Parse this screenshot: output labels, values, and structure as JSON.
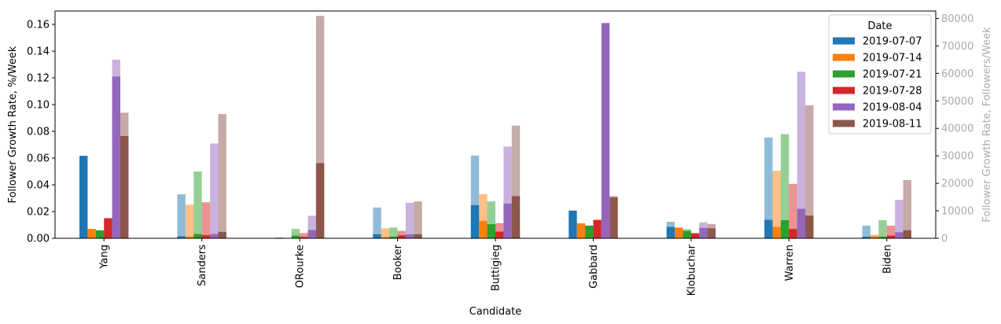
{
  "chart_data": {
    "type": "bar",
    "xlabel": "Candidate",
    "ylabel_left": "Follower Growth Rate, %/Week",
    "ylabel_right": "Follower Growth Rate, Followers/Week",
    "ylim_left": [
      0,
      0.17
    ],
    "ylim_right": [
      0,
      82700
    ],
    "yticks_left": [
      "0.00",
      "0.02",
      "0.04",
      "0.06",
      "0.08",
      "0.10",
      "0.12",
      "0.14",
      "0.16"
    ],
    "yticks_left_values": [
      0,
      0.02,
      0.04,
      0.06,
      0.08,
      0.1,
      0.12,
      0.14,
      0.16
    ],
    "yticks_right": [
      "0",
      "10000",
      "20000",
      "30000",
      "40000",
      "50000",
      "60000",
      "70000",
      "80000"
    ],
    "yticks_right_values": [
      0,
      10000,
      20000,
      30000,
      40000,
      50000,
      60000,
      70000,
      80000
    ],
    "categories": [
      "Yang",
      "Sanders",
      "ORourke",
      "Booker",
      "Buttigieg",
      "Gabbard",
      "Klobuchar",
      "Warren",
      "Biden"
    ],
    "legend": {
      "title": "Date",
      "position": "top-right"
    },
    "grid": false,
    "series": [
      {
        "name": "2019-07-07",
        "color": "#1f77b4",
        "pct_per_week": [
          0.0617,
          0.0015,
          0.0005,
          0.003,
          0.0248,
          0.0207,
          0.0085,
          0.0138,
          0.0012
        ],
        "followers_per_week": [
          0,
          16000,
          0,
          11200,
          30100,
          0,
          6000,
          36700,
          4600
        ]
      },
      {
        "name": "2019-07-14",
        "color": "#ff7f0e",
        "pct_per_week": [
          0.007,
          0.0012,
          0.0002,
          0.0008,
          0.013,
          0.0112,
          0.0078,
          0.0085,
          0.0015
        ],
        "followers_per_week": [
          0,
          12200,
          0,
          3600,
          16100,
          0,
          4000,
          24600,
          1300
        ]
      },
      {
        "name": "2019-07-21",
        "color": "#2ca02c",
        "pct_per_week": [
          0.006,
          0.0032,
          0.002,
          0.0012,
          0.0105,
          0.0095,
          0.0055,
          0.0135,
          0.0012
        ],
        "followers_per_week": [
          0,
          24300,
          3400,
          3900,
          13400,
          0,
          3300,
          37900,
          6600
        ]
      },
      {
        "name": "2019-07-28",
        "color": "#d62728",
        "pct_per_week": [
          0.015,
          0.0023,
          0.001,
          0.0022,
          0.005,
          0.0138,
          0.0038,
          0.007,
          0.002
        ],
        "followers_per_week": [
          0,
          13100,
          1900,
          2700,
          5500,
          0,
          1500,
          19800,
          4600
        ]
      },
      {
        "name": "2019-08-04",
        "color": "#9467bd",
        "pct_per_week": [
          0.121,
          0.0032,
          0.0062,
          0.003,
          0.026,
          0.161,
          0.0078,
          0.022,
          0.0045
        ],
        "followers_per_week": [
          65000,
          34500,
          8200,
          12900,
          33400,
          0,
          5800,
          60600,
          14000
        ]
      },
      {
        "name": "2019-08-11",
        "color": "#8c564b",
        "pct_per_week": [
          0.0765,
          0.0048,
          0.0562,
          0.003,
          0.0315,
          0.0305,
          0.0075,
          0.017,
          0.006
        ],
        "followers_per_week": [
          45700,
          45200,
          80900,
          13400,
          41000,
          15400,
          5200,
          48400,
          21200
        ]
      }
    ]
  }
}
